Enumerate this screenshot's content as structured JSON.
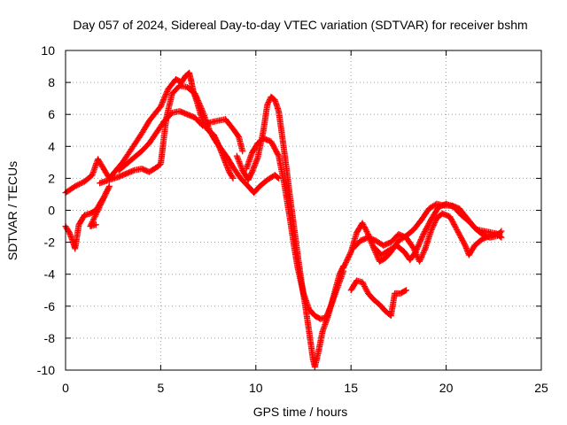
{
  "chart_data": {
    "type": "scatter",
    "title": "Day 057 of 2024, Sidereal Day-to-day VTEC variation (SDTVAR) for receiver bshm",
    "xlabel": "GPS time / hours",
    "ylabel": "SDTVAR / TECUs",
    "xlim": [
      0,
      25
    ],
    "ylim": [
      -10,
      10
    ],
    "xticks": [
      0,
      5,
      10,
      15,
      20,
      25
    ],
    "yticks": [
      -10,
      -8,
      -6,
      -4,
      -2,
      0,
      2,
      4,
      6,
      8,
      10
    ],
    "grid": true,
    "marker": "plus",
    "series": [
      {
        "name": "upper-branch-a",
        "color": "#ff0000",
        "points": [
          [
            0.0,
            1.1
          ],
          [
            0.5,
            1.5
          ],
          [
            1.0,
            1.8
          ],
          [
            1.4,
            2.2
          ],
          [
            1.7,
            3.2
          ],
          [
            2.3,
            2.0
          ],
          [
            3.0,
            3.0
          ],
          [
            3.5,
            3.9
          ],
          [
            4.0,
            4.8
          ],
          [
            4.4,
            5.6
          ],
          [
            5.0,
            6.5
          ],
          [
            5.4,
            7.6
          ],
          [
            5.8,
            8.2
          ],
          [
            6.1,
            8.0
          ],
          [
            6.3,
            8.4
          ],
          [
            6.5,
            8.6
          ],
          [
            6.6,
            8.1
          ],
          [
            6.7,
            7.5
          ],
          [
            6.9,
            6.8
          ],
          [
            7.1,
            6.0
          ],
          [
            7.3,
            5.3
          ],
          [
            7.5,
            5.0
          ],
          [
            7.8,
            4.7
          ],
          [
            8.0,
            4.2
          ],
          [
            8.2,
            3.6
          ],
          [
            8.4,
            3.0
          ],
          [
            8.6,
            2.4
          ],
          [
            8.8,
            2.0
          ]
        ]
      },
      {
        "name": "upper-branch-b",
        "color": "#ff0000",
        "points": [
          [
            2.8,
            2.5
          ],
          [
            3.2,
            2.9
          ],
          [
            3.6,
            3.3
          ],
          [
            4.0,
            3.7
          ],
          [
            4.4,
            4.2
          ],
          [
            4.8,
            4.9
          ],
          [
            5.2,
            5.6
          ],
          [
            5.6,
            6.1
          ],
          [
            6.0,
            6.2
          ],
          [
            6.4,
            6.0
          ],
          [
            6.8,
            5.8
          ],
          [
            7.2,
            5.3
          ],
          [
            7.6,
            5.5
          ],
          [
            8.0,
            5.6
          ],
          [
            8.4,
            5.7
          ],
          [
            8.8,
            5.1
          ],
          [
            9.1,
            4.6
          ],
          [
            9.3,
            3.7
          ]
        ]
      },
      {
        "name": "upper-branch-c",
        "color": "#ff0000",
        "points": [
          [
            1.8,
            1.7
          ],
          [
            2.3,
            1.9
          ],
          [
            2.8,
            2.1
          ],
          [
            3.2,
            2.3
          ],
          [
            3.6,
            2.5
          ],
          [
            4.0,
            2.6
          ],
          [
            4.4,
            2.4
          ],
          [
            4.8,
            2.7
          ],
          [
            5.0,
            2.9
          ],
          [
            5.3,
            5.8
          ],
          [
            5.6,
            7.3
          ],
          [
            6.0,
            7.8
          ],
          [
            6.4,
            7.7
          ],
          [
            6.8,
            7.3
          ],
          [
            7.2,
            6.2
          ],
          [
            7.6,
            4.9
          ],
          [
            7.9,
            4.3
          ],
          [
            8.2,
            3.8
          ],
          [
            8.5,
            3.3
          ],
          [
            8.8,
            2.7
          ],
          [
            9.2,
            2.0
          ],
          [
            9.6,
            1.5
          ],
          [
            9.9,
            1.1
          ],
          [
            10.2,
            1.5
          ],
          [
            10.6,
            1.9
          ],
          [
            11.0,
            2.2
          ],
          [
            11.2,
            2.0
          ]
        ]
      },
      {
        "name": "left-low",
        "color": "#ff0000",
        "points": [
          [
            0.0,
            -1.0
          ],
          [
            0.2,
            -1.4
          ],
          [
            0.4,
            -2.0
          ],
          [
            0.5,
            -2.4
          ],
          [
            0.7,
            -0.9
          ],
          [
            1.0,
            -0.3
          ],
          [
            1.3,
            -0.2
          ],
          [
            1.6,
            0.0
          ],
          [
            2.0,
            0.8
          ],
          [
            2.3,
            1.5
          ],
          [
            1.3,
            -1.0
          ],
          [
            1.6,
            -0.9
          ]
        ]
      },
      {
        "name": "dip-branch",
        "color": "#ff0000",
        "points": [
          [
            9.0,
            3.4
          ],
          [
            9.3,
            2.5
          ],
          [
            9.6,
            1.9
          ],
          [
            9.8,
            2.4
          ],
          [
            10.1,
            3.3
          ],
          [
            10.4,
            5.0
          ],
          [
            10.6,
            6.6
          ],
          [
            10.8,
            7.1
          ],
          [
            11.0,
            6.9
          ],
          [
            11.2,
            6.2
          ],
          [
            11.4,
            4.5
          ],
          [
            11.6,
            2.7
          ],
          [
            11.8,
            0.8
          ],
          [
            12.0,
            -1.0
          ],
          [
            12.2,
            -2.8
          ],
          [
            12.4,
            -4.5
          ],
          [
            12.6,
            -6.0
          ],
          [
            12.8,
            -7.6
          ],
          [
            13.0,
            -9.3
          ],
          [
            13.1,
            -9.8
          ],
          [
            13.3,
            -8.8
          ],
          [
            13.5,
            -7.6
          ],
          [
            13.8,
            -6.6
          ],
          [
            14.1,
            -5.3
          ],
          [
            14.4,
            -4.0
          ],
          [
            14.6,
            -3.5
          ]
        ]
      },
      {
        "name": "dip-branch-b",
        "color": "#ff0000",
        "points": [
          [
            9.5,
            2.6
          ],
          [
            9.8,
            3.6
          ],
          [
            10.1,
            4.2
          ],
          [
            10.4,
            4.5
          ],
          [
            10.8,
            4.3
          ],
          [
            11.2,
            3.4
          ],
          [
            11.5,
            1.6
          ],
          [
            11.8,
            -0.6
          ],
          [
            12.0,
            -2.2
          ],
          [
            12.2,
            -3.6
          ],
          [
            12.5,
            -5.2
          ],
          [
            12.8,
            -6.2
          ],
          [
            13.1,
            -6.6
          ],
          [
            13.4,
            -6.8
          ],
          [
            13.7,
            -6.7
          ],
          [
            14.0,
            -5.8
          ],
          [
            14.3,
            -4.8
          ],
          [
            14.6,
            -3.8
          ]
        ]
      },
      {
        "name": "right-mid",
        "color": "#ff0000",
        "points": [
          [
            14.6,
            -3.6
          ],
          [
            15.0,
            -2.6
          ],
          [
            15.3,
            -1.4
          ],
          [
            15.6,
            -0.8
          ],
          [
            15.9,
            -1.5
          ],
          [
            16.2,
            -2.4
          ],
          [
            16.5,
            -3.2
          ],
          [
            16.8,
            -3.0
          ],
          [
            17.1,
            -2.6
          ],
          [
            17.5,
            -1.9
          ],
          [
            17.9,
            -1.6
          ],
          [
            18.3,
            -1.2
          ],
          [
            18.7,
            -0.6
          ],
          [
            19.1,
            0.1
          ],
          [
            19.5,
            0.4
          ],
          [
            19.9,
            0.3
          ],
          [
            20.3,
            0.3
          ],
          [
            20.7,
            0.1
          ],
          [
            21.1,
            -0.5
          ],
          [
            21.5,
            -1.1
          ],
          [
            21.9,
            -1.5
          ],
          [
            22.3,
            -1.7
          ],
          [
            22.7,
            -1.6
          ],
          [
            22.9,
            -1.3
          ]
        ]
      },
      {
        "name": "right-mid-b",
        "color": "#ff0000",
        "points": [
          [
            15.1,
            -2.4
          ],
          [
            15.5,
            -1.9
          ],
          [
            15.9,
            -1.7
          ],
          [
            16.3,
            -1.9
          ],
          [
            16.7,
            -2.2
          ],
          [
            17.1,
            -2.0
          ],
          [
            17.5,
            -1.5
          ],
          [
            17.9,
            -1.7
          ],
          [
            18.3,
            -2.4
          ],
          [
            18.6,
            -3.2
          ],
          [
            18.9,
            -2.4
          ],
          [
            19.2,
            -1.3
          ],
          [
            19.5,
            -0.5
          ],
          [
            19.8,
            -0.2
          ],
          [
            20.2,
            -0.4
          ],
          [
            20.6,
            -1.3
          ],
          [
            21.0,
            -2.2
          ],
          [
            21.2,
            -2.8
          ],
          [
            21.5,
            -2.2
          ],
          [
            21.9,
            -1.8
          ],
          [
            22.3,
            -1.6
          ],
          [
            22.7,
            -1.5
          ],
          [
            22.9,
            -1.7
          ]
        ]
      },
      {
        "name": "right-mid-c",
        "color": "#ff0000",
        "points": [
          [
            16.2,
            -2.3
          ],
          [
            16.6,
            -2.8
          ],
          [
            17.0,
            -2.5
          ],
          [
            17.4,
            -2.2
          ],
          [
            17.8,
            -2.6
          ],
          [
            18.1,
            -3.1
          ],
          [
            18.4,
            -2.6
          ],
          [
            18.8,
            -1.5
          ],
          [
            19.2,
            -0.6
          ],
          [
            19.6,
            0.2
          ],
          [
            20.0,
            0.4
          ],
          [
            20.4,
            0.2
          ],
          [
            20.8,
            -0.3
          ],
          [
            21.2,
            -0.7
          ],
          [
            21.6,
            -1.2
          ],
          [
            22.0,
            -1.3
          ],
          [
            22.4,
            -1.4
          ],
          [
            22.8,
            -1.5
          ]
        ]
      },
      {
        "name": "lower-right",
        "color": "#ff0000",
        "points": [
          [
            15.0,
            -5.0
          ],
          [
            15.3,
            -4.4
          ],
          [
            15.6,
            -4.5
          ],
          [
            15.9,
            -5.2
          ],
          [
            16.2,
            -5.6
          ],
          [
            16.5,
            -5.9
          ],
          [
            16.8,
            -6.3
          ],
          [
            17.1,
            -6.6
          ],
          [
            17.3,
            -5.2
          ],
          [
            17.6,
            -5.2
          ],
          [
            17.9,
            -5.0
          ]
        ]
      }
    ]
  }
}
